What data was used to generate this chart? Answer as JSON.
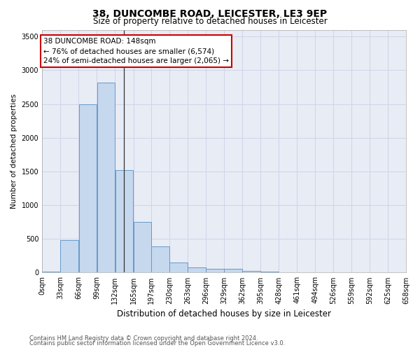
{
  "title1": "38, DUNCOMBE ROAD, LEICESTER, LE3 9EP",
  "title2": "Size of property relative to detached houses in Leicester",
  "xlabel": "Distribution of detached houses by size in Leicester",
  "ylabel": "Number of detached properties",
  "annotation_title": "38 DUNCOMBE ROAD: 148sqm",
  "annotation_line2": "← 76% of detached houses are smaller (6,574)",
  "annotation_line3": "24% of semi-detached houses are larger (2,065) →",
  "footer1": "Contains HM Land Registry data © Crown copyright and database right 2024.",
  "footer2": "Contains public sector information licensed under the Open Government Licence v3.0.",
  "bar_color": "#c5d8ed",
  "bar_edge_color": "#6699cc",
  "property_line_color": "#333333",
  "annotation_box_edgecolor": "#cc0000",
  "grid_color": "#d0d4e8",
  "background_color": "#e8ecf5",
  "title1_fontsize": 10,
  "title2_fontsize": 8.5,
  "xlabel_fontsize": 8.5,
  "ylabel_fontsize": 7.5,
  "tick_fontsize": 7,
  "footer_fontsize": 6,
  "annotation_fontsize": 7.5,
  "bin_edges": [
    0,
    33,
    66,
    99,
    132,
    165,
    197,
    230,
    263,
    296,
    329,
    362,
    395,
    428,
    461,
    494,
    526,
    559,
    592,
    625,
    658
  ],
  "bin_labels": [
    "0sqm",
    "33sqm",
    "66sqm",
    "99sqm",
    "132sqm",
    "165sqm",
    "197sqm",
    "230sqm",
    "263sqm",
    "296sqm",
    "329sqm",
    "362sqm",
    "395sqm",
    "428sqm",
    "461sqm",
    "494sqm",
    "526sqm",
    "559sqm",
    "592sqm",
    "625sqm",
    "658sqm"
  ],
  "bar_values": [
    20,
    480,
    2500,
    2820,
    1520,
    750,
    390,
    145,
    75,
    55,
    55,
    30,
    20,
    0,
    0,
    0,
    0,
    0,
    0,
    0
  ],
  "property_size": 148,
  "ylim": [
    0,
    3600
  ],
  "yticks": [
    0,
    500,
    1000,
    1500,
    2000,
    2500,
    3000,
    3500
  ]
}
